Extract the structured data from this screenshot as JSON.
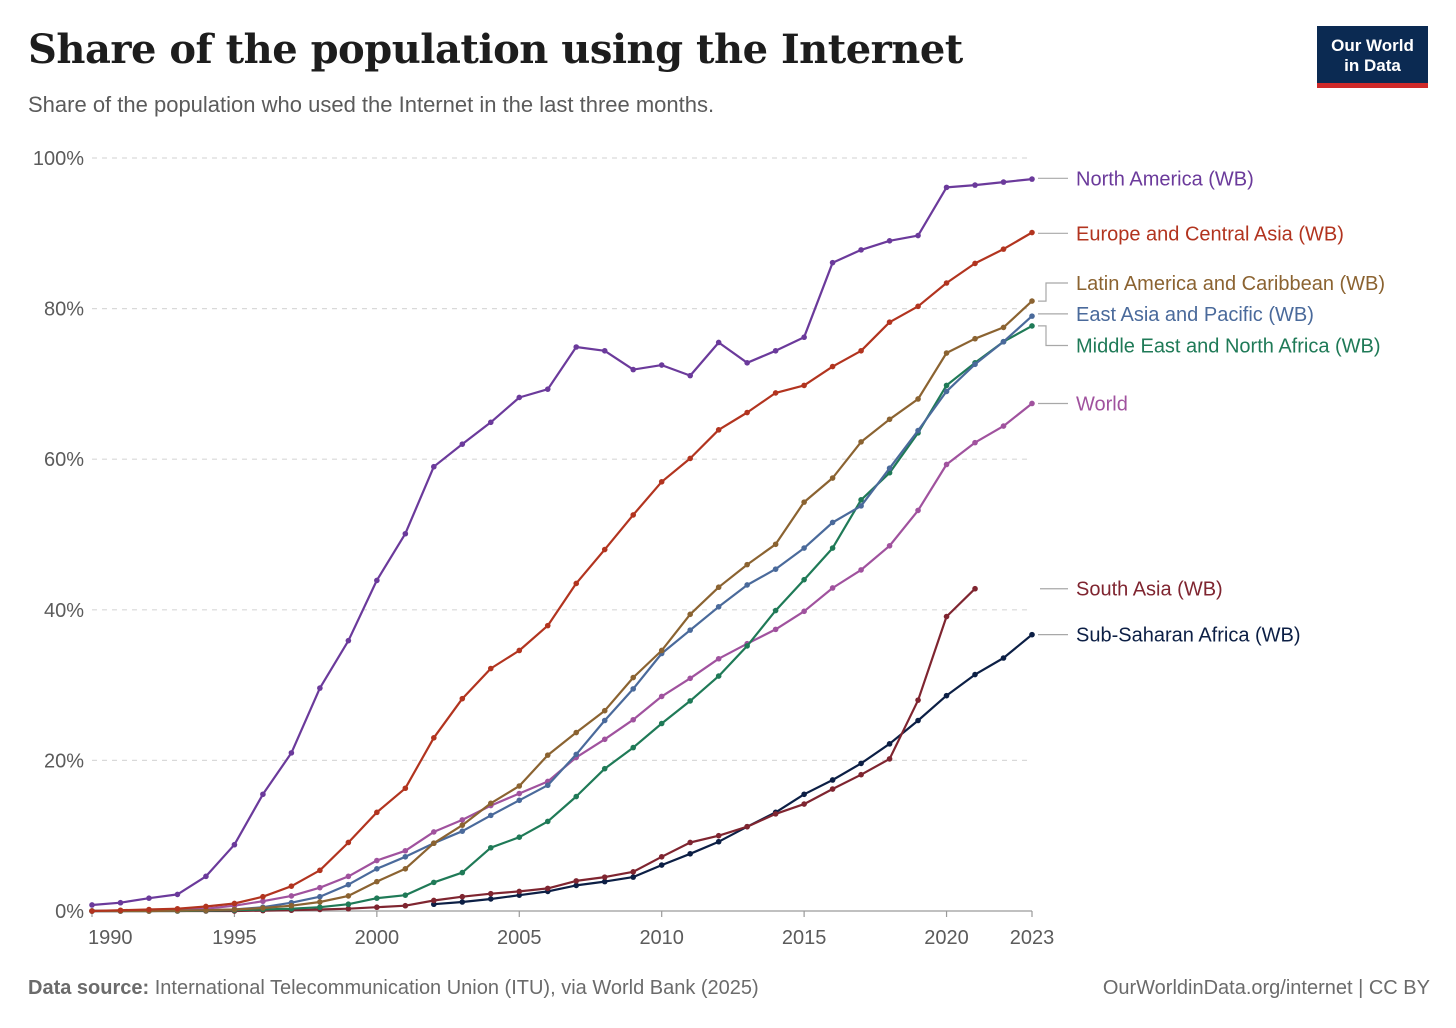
{
  "header": {
    "title": "Share of the population using the Internet",
    "subtitle": "Share of the population who used the Internet in the last three months."
  },
  "logo": {
    "line1": "Our World",
    "line2": "in Data"
  },
  "footer": {
    "source_label": "Data source:",
    "source_text": "International Telecommunication Union (ITU), via World Bank (2025)",
    "right_text": "OurWorldinData.org/internet | CC BY"
  },
  "chart_data": {
    "type": "line",
    "title": "Share of the population using the Internet",
    "subtitle": "Share of the population who used the Internet in the last three months.",
    "xlabel": "",
    "ylabel": "",
    "xlim": [
      1990,
      2023
    ],
    "ylim": [
      0,
      100
    ],
    "x_ticks": [
      {
        "value": 1990,
        "label": "1990"
      },
      {
        "value": 1995,
        "label": "1995"
      },
      {
        "value": 2000,
        "label": "2000"
      },
      {
        "value": 2005,
        "label": "2005"
      },
      {
        "value": 2010,
        "label": "2010"
      },
      {
        "value": 2015,
        "label": "2015"
      },
      {
        "value": 2020,
        "label": "2020"
      },
      {
        "value": 2023,
        "label": "2023"
      }
    ],
    "y_ticks": [
      {
        "value": 0,
        "label": "0%"
      },
      {
        "value": 20,
        "label": "20%"
      },
      {
        "value": 40,
        "label": "40%"
      },
      {
        "value": 60,
        "label": "60%"
      },
      {
        "value": 80,
        "label": "80%"
      },
      {
        "value": 100,
        "label": "100%"
      }
    ],
    "grid": "horizontal dashed",
    "legend": "labels at right end of lines",
    "series": [
      {
        "name": "North America (WB)",
        "color": "#6b3a9b",
        "x": [
          1990,
          1991,
          1992,
          1993,
          1994,
          1995,
          1996,
          1997,
          1998,
          1999,
          2000,
          2001,
          2002,
          2003,
          2004,
          2005,
          2006,
          2007,
          2008,
          2009,
          2010,
          2011,
          2012,
          2013,
          2014,
          2015,
          2016,
          2017,
          2018,
          2019,
          2020,
          2021,
          2022,
          2023
        ],
        "y": [
          0.8,
          1.1,
          1.7,
          2.2,
          4.6,
          8.8,
          15.5,
          21,
          29.6,
          35.9,
          43.9,
          50.1,
          59,
          62,
          64.9,
          68.2,
          69.3,
          74.9,
          74.4,
          71.9,
          72.5,
          71.1,
          75.5,
          72.8,
          74.4,
          76.2,
          86.1,
          87.8,
          89,
          89.7,
          96.1,
          96.4,
          96.8,
          97.2
        ]
      },
      {
        "name": "Europe and Central Asia (WB)",
        "color": "#b2341f",
        "x": [
          1990,
          1991,
          1992,
          1993,
          1994,
          1995,
          1996,
          1997,
          1998,
          1999,
          2000,
          2001,
          2002,
          2003,
          2004,
          2005,
          2006,
          2007,
          2008,
          2009,
          2010,
          2011,
          2012,
          2013,
          2014,
          2015,
          2016,
          2017,
          2018,
          2019,
          2020,
          2021,
          2022,
          2023
        ],
        "y": [
          0,
          0.1,
          0.2,
          0.3,
          0.6,
          1,
          1.9,
          3.3,
          5.4,
          9.1,
          13.1,
          16.3,
          23,
          28.2,
          32.2,
          34.6,
          37.9,
          43.5,
          48,
          52.6,
          57,
          60.1,
          63.9,
          66.2,
          68.8,
          69.8,
          72.3,
          74.4,
          78.2,
          80.3,
          83.4,
          86,
          87.9,
          90.1
        ]
      },
      {
        "name": "Latin America and Caribbean (WB)",
        "color": "#8b6331",
        "x": [
          1990,
          1991,
          1992,
          1993,
          1994,
          1995,
          1996,
          1997,
          1998,
          1999,
          2000,
          2001,
          2002,
          2003,
          2004,
          2005,
          2006,
          2007,
          2008,
          2009,
          2010,
          2011,
          2012,
          2013,
          2014,
          2015,
          2016,
          2017,
          2018,
          2019,
          2020,
          2021,
          2022,
          2023
        ],
        "y": [
          0,
          0,
          0,
          0.05,
          0.1,
          0.2,
          0.4,
          0.7,
          1.2,
          2,
          3.9,
          5.6,
          9,
          11.4,
          14.3,
          16.6,
          20.7,
          23.7,
          26.6,
          31,
          34.6,
          39.4,
          43,
          46,
          48.7,
          54.3,
          57.5,
          62.3,
          65.3,
          68,
          74.1,
          76,
          77.5,
          81
        ]
      },
      {
        "name": "East Asia and Pacific (WB)",
        "color": "#4a6a9b",
        "x": [
          1990,
          1991,
          1992,
          1993,
          1994,
          1995,
          1996,
          1997,
          1998,
          1999,
          2000,
          2001,
          2002,
          2003,
          2004,
          2005,
          2006,
          2007,
          2008,
          2009,
          2010,
          2011,
          2012,
          2013,
          2014,
          2015,
          2016,
          2017,
          2018,
          2019,
          2020,
          2021,
          2022,
          2023
        ],
        "y": [
          0,
          0,
          0,
          0.05,
          0.1,
          0.2,
          0.5,
          1.1,
          1.9,
          3.5,
          5.6,
          7.2,
          9,
          10.6,
          12.7,
          14.7,
          16.7,
          20.8,
          25.3,
          29.5,
          34.2,
          37.3,
          40.4,
          43.3,
          45.4,
          48.2,
          51.6,
          53.8,
          58.8,
          63.8,
          69,
          72.6,
          75.6,
          79
        ]
      },
      {
        "name": "Middle East and North Africa (WB)",
        "color": "#1f7a57",
        "x": [
          1990,
          1991,
          1992,
          1993,
          1994,
          1995,
          1996,
          1997,
          1998,
          1999,
          2000,
          2001,
          2002,
          2003,
          2004,
          2005,
          2006,
          2007,
          2008,
          2009,
          2010,
          2011,
          2012,
          2013,
          2014,
          2015,
          2016,
          2017,
          2018,
          2019,
          2020,
          2021,
          2022,
          2023
        ],
        "y": [
          0,
          0,
          0,
          0,
          0.05,
          0.1,
          0.2,
          0.3,
          0.5,
          0.9,
          1.7,
          2.1,
          3.8,
          5.1,
          8.4,
          9.8,
          11.9,
          15.2,
          18.9,
          21.7,
          24.9,
          27.9,
          31.2,
          35.2,
          39.9,
          44,
          48.2,
          54.6,
          58.2,
          63.5,
          69.8,
          72.8,
          75.6,
          77.7
        ]
      },
      {
        "name": "World",
        "color": "#a0529e",
        "x": [
          1990,
          1991,
          1992,
          1993,
          1994,
          1995,
          1996,
          1997,
          1998,
          1999,
          2000,
          2001,
          2002,
          2003,
          2004,
          2005,
          2006,
          2007,
          2008,
          2009,
          2010,
          2011,
          2012,
          2013,
          2014,
          2015,
          2016,
          2017,
          2018,
          2019,
          2020,
          2021,
          2022,
          2023
        ],
        "y": [
          0,
          0,
          0.1,
          0.2,
          0.3,
          0.7,
          1.3,
          2,
          3.1,
          4.6,
          6.7,
          8,
          10.5,
          12.1,
          14,
          15.6,
          17.2,
          20.4,
          22.8,
          25.4,
          28.5,
          30.9,
          33.5,
          35.5,
          37.4,
          39.8,
          42.9,
          45.3,
          48.5,
          53.2,
          59.3,
          62.2,
          64.4,
          67.4
        ]
      },
      {
        "name": "South Asia (WB)",
        "color": "#7f2530",
        "x": [
          1990,
          1991,
          1992,
          1993,
          1994,
          1995,
          1996,
          1997,
          1998,
          1999,
          2000,
          2001,
          2002,
          2003,
          2004,
          2005,
          2006,
          2007,
          2008,
          2009,
          2010,
          2011,
          2012,
          2013,
          2014,
          2015,
          2016,
          2017,
          2018,
          2019,
          2020,
          2021
        ],
        "y": [
          0,
          0,
          0,
          0,
          0,
          0,
          0.05,
          0.1,
          0.2,
          0.3,
          0.5,
          0.7,
          1.4,
          1.9,
          2.3,
          2.6,
          3,
          4,
          4.5,
          5.2,
          7.2,
          9.1,
          10,
          11.2,
          12.9,
          14.2,
          16.2,
          18.1,
          20.2,
          28,
          39.1,
          42.8
        ]
      },
      {
        "name": "Sub-Saharan Africa (WB)",
        "color": "#0c1f45",
        "x": [
          2002,
          2003,
          2004,
          2005,
          2006,
          2007,
          2008,
          2009,
          2010,
          2011,
          2012,
          2013,
          2014,
          2015,
          2016,
          2017,
          2018,
          2019,
          2020,
          2021,
          2022,
          2023
        ],
        "y": [
          0.9,
          1.2,
          1.6,
          2.1,
          2.6,
          3.4,
          3.9,
          4.5,
          6.1,
          7.6,
          9.2,
          11.2,
          13.1,
          15.5,
          17.4,
          19.6,
          22.2,
          25.3,
          28.6,
          31.4,
          33.6,
          36.7
        ]
      }
    ],
    "end_labels": [
      {
        "series": "North America (WB)",
        "label_value": 97.3,
        "bracket": false
      },
      {
        "series": "Europe and Central Asia (WB)",
        "label_value": 90,
        "bracket": false
      },
      {
        "series": "Latin America and Caribbean (WB)",
        "label_value": 83.4,
        "bracket": true
      },
      {
        "series": "East Asia and Pacific (WB)",
        "label_value": 79.3,
        "bracket": false
      },
      {
        "series": "Middle East and North Africa (WB)",
        "label_value": 75.1,
        "bracket": true
      },
      {
        "series": "World",
        "label_value": 67.4,
        "bracket": false
      },
      {
        "series": "South Asia (WB)",
        "label_value": 42.8,
        "bracket": false,
        "gap": true
      },
      {
        "series": "Sub-Saharan Africa (WB)",
        "label_value": 36.7,
        "bracket": false
      }
    ]
  }
}
